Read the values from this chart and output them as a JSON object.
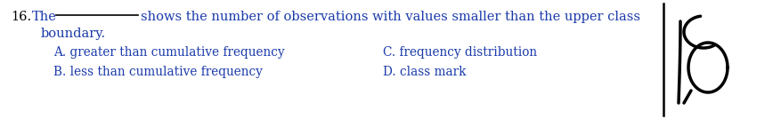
{
  "number": "16.",
  "text_color": "#1a3aaa",
  "number_color": "#333333",
  "bg_color": "#ffffff",
  "fig_width": 8.78,
  "fig_height": 1.34,
  "dpi": 100,
  "line1_q": "shows the number of observations with values smaller than the upper class",
  "line2_q": "boundary.",
  "option_a": "A. greater than cumulative frequency",
  "option_b": "B. less than cumulative frequency",
  "option_c": "C. frequency distribution",
  "option_d": "D. class mark"
}
